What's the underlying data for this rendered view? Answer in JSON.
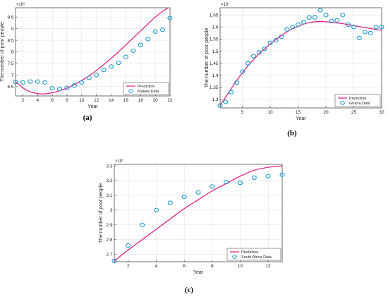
{
  "colors": {
    "prediction": "#e0157f",
    "data": "#1b9bd1",
    "axis": "#333333",
    "grid": "#dcdcdc"
  },
  "chart_data": [
    {
      "panel_label": "(a)",
      "type": "line",
      "xlabel": "Year",
      "ylabel": "The number of poor people",
      "multiplier": "×10⁶",
      "xlim": [
        1,
        22
      ],
      "ylim": [
        6.1,
        9.9
      ],
      "xticks": [
        2,
        4,
        6,
        8,
        10,
        12,
        14,
        16,
        18,
        20,
        22
      ],
      "yticks": [
        6.5,
        7,
        7.5,
        8,
        8.5,
        9,
        9.5
      ],
      "grid": true,
      "legend_position": "bottom-right",
      "series": [
        {
          "name": "Prediction",
          "kind": "line",
          "x": [
            1,
            2,
            3,
            4,
            5,
            6,
            7,
            8,
            9,
            10,
            11,
            12,
            13,
            14,
            15,
            16,
            17,
            18,
            19,
            20,
            21,
            22
          ],
          "y": [
            6.72,
            6.45,
            6.28,
            6.2,
            6.19,
            6.24,
            6.32,
            6.44,
            6.59,
            6.77,
            6.97,
            7.2,
            7.45,
            7.72,
            8.0,
            8.3,
            8.6,
            8.9,
            9.2,
            9.5,
            9.75,
            9.95
          ]
        },
        {
          "name": "Malawi Data",
          "kind": "scatter",
          "x": [
            1,
            2,
            3,
            4,
            5,
            6,
            7,
            8,
            9,
            10,
            11,
            12,
            13,
            14,
            15,
            16,
            17,
            18,
            19,
            20,
            21,
            22
          ],
          "y": [
            6.7,
            6.68,
            6.72,
            6.72,
            6.68,
            6.43,
            6.4,
            6.45,
            6.55,
            6.68,
            6.88,
            7.0,
            7.22,
            7.37,
            7.53,
            7.78,
            8.05,
            8.3,
            8.55,
            8.87,
            8.95,
            9.45
          ]
        }
      ]
    },
    {
      "panel_label": "(b)",
      "type": "line",
      "xlabel": "Year",
      "ylabel": "The number of poor people",
      "multiplier": "×10⁷",
      "xlim": [
        1,
        30
      ],
      "ylim": [
        1.265,
        1.68
      ],
      "xticks": [
        5,
        10,
        15,
        20,
        25,
        30
      ],
      "yticks": [
        1.3,
        1.35,
        1.4,
        1.45,
        1.5,
        1.55,
        1.6,
        1.65
      ],
      "grid": true,
      "legend_position": "bottom-right",
      "series": [
        {
          "name": "Prediction",
          "kind": "line",
          "x": [
            1,
            2,
            3,
            4,
            5,
            6,
            7,
            8,
            9,
            10,
            11,
            12,
            13,
            14,
            15,
            16,
            17,
            18,
            19,
            20,
            21,
            22,
            23,
            24,
            25,
            26,
            27,
            28,
            29,
            30
          ],
          "y": [
            1.275,
            1.31,
            1.345,
            1.38,
            1.41,
            1.44,
            1.465,
            1.49,
            1.51,
            1.53,
            1.548,
            1.565,
            1.58,
            1.593,
            1.603,
            1.612,
            1.618,
            1.622,
            1.623,
            1.622,
            1.62,
            1.617,
            1.614,
            1.61,
            1.606,
            1.602,
            1.598,
            1.594,
            1.59,
            1.586
          ]
        },
        {
          "name": "Ghana Data",
          "kind": "scatter",
          "x": [
            1,
            2,
            3,
            4,
            5,
            6,
            7,
            8,
            9,
            10,
            11,
            12,
            13,
            14,
            15,
            16,
            17,
            18,
            19,
            20,
            21,
            22,
            23,
            24,
            25,
            26,
            27,
            28,
            29,
            30
          ],
          "y": [
            1.275,
            1.29,
            1.33,
            1.37,
            1.415,
            1.45,
            1.48,
            1.495,
            1.51,
            1.535,
            1.545,
            1.56,
            1.59,
            1.6,
            1.61,
            1.62,
            1.64,
            1.64,
            1.67,
            1.65,
            1.625,
            1.628,
            1.65,
            1.61,
            1.6,
            1.555,
            1.58,
            1.575,
            1.6,
            1.6
          ]
        }
      ]
    },
    {
      "panel_label": "(c)",
      "type": "line",
      "xlabel": "Year",
      "ylabel": "The number of poor people",
      "multiplier": "×10⁷",
      "xlim": [
        1,
        13
      ],
      "ylim": [
        2.65,
        3.31
      ],
      "xticks": [
        2,
        4,
        6,
        8,
        10,
        12
      ],
      "yticks": [
        2.7,
        2.8,
        2.9,
        3,
        3.1,
        3.2,
        3.3
      ],
      "grid": true,
      "legend_position": "bottom-right",
      "series": [
        {
          "name": "Prediction",
          "kind": "line",
          "x": [
            1,
            2,
            3,
            4,
            5,
            6,
            7,
            8,
            9,
            10,
            11,
            12,
            13
          ],
          "y": [
            2.655,
            2.73,
            2.8,
            2.87,
            2.94,
            3.01,
            3.07,
            3.13,
            3.18,
            3.23,
            3.27,
            3.29,
            3.3
          ]
        },
        {
          "name": "South Africa Data",
          "kind": "scatter",
          "x": [
            1,
            2,
            3,
            4,
            5,
            6,
            7,
            8,
            9,
            10,
            11,
            12,
            13
          ],
          "y": [
            2.655,
            2.76,
            2.9,
            3.0,
            3.05,
            3.09,
            3.12,
            3.16,
            3.19,
            3.185,
            3.22,
            3.23,
            3.24
          ]
        }
      ]
    }
  ]
}
